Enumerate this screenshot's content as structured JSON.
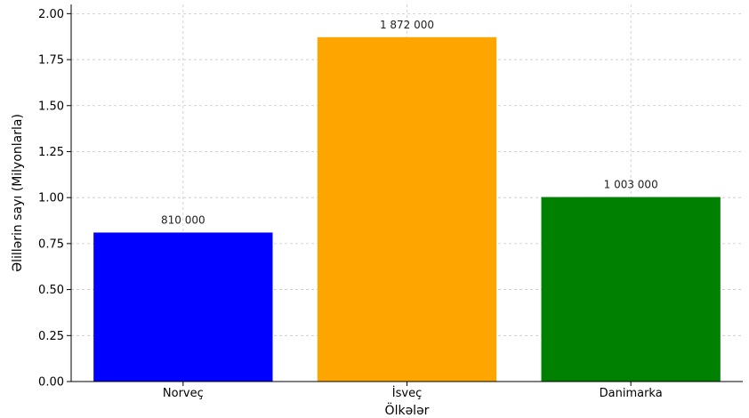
{
  "chart_data": {
    "type": "bar",
    "title": "",
    "xlabel": "Ölkələr",
    "ylabel": "Əlillərin sayı (Milyonlarla)",
    "categories": [
      "Norveç",
      "İsveç",
      "Danimarka"
    ],
    "values": [
      0.81,
      1.872,
      1.003
    ],
    "value_labels": [
      "810 000",
      "1 872 000",
      "1 003 000"
    ],
    "colors": [
      "#0000ff",
      "#ffa500",
      "#008000"
    ],
    "ylim": [
      0,
      2.05
    ],
    "yticks": [
      0.0,
      0.25,
      0.5,
      0.75,
      1.0,
      1.25,
      1.5,
      1.75,
      2.0
    ],
    "ytick_labels": [
      "0.00",
      "0.25",
      "0.50",
      "0.75",
      "1.00",
      "1.25",
      "1.50",
      "1.75",
      "2.00"
    ],
    "grid": true,
    "legend": "none"
  }
}
